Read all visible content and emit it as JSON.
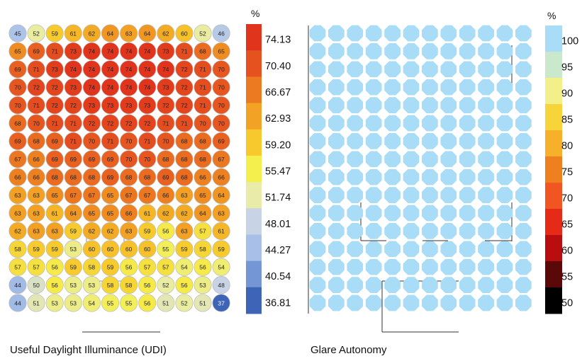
{
  "figure": {
    "udi": {
      "title": "Useful Daylight Illuminance (UDI)",
      "unit": "%",
      "legend_ticks": [
        "74.13",
        "70.40",
        "66.67",
        "62.93",
        "59.20",
        "55.47",
        "51.74",
        "48.01",
        "44.27",
        "40.54",
        "36.81"
      ],
      "legend_colors": [
        "#e0341c",
        "#e55220",
        "#ec7a20",
        "#f2a224",
        "#f7c92c",
        "#f5ef4e",
        "#e8eca8",
        "#c8d4e6",
        "#a8c0e8",
        "#7496d4",
        "#3e64b8"
      ]
    },
    "ga": {
      "title": "Glare Autonomy",
      "unit": "%",
      "legend_ticks": [
        "100",
        "95",
        "90",
        "85",
        "80",
        "75",
        "70",
        "65",
        "60",
        "55",
        "50"
      ],
      "legend_colors": [
        "#a9dcf6",
        "#c9e8cc",
        "#f3f08a",
        "#f7d53a",
        "#f6b02a",
        "#ef8020",
        "#f05522",
        "#e62a18",
        "#b80e10",
        "#5a0808",
        "#000000"
      ],
      "cell_color": "#a9dcf6"
    }
  },
  "chart_data": [
    {
      "type": "heatmap",
      "title": "Useful Daylight Illuminance (UDI)",
      "unit": "%",
      "colorbar_range": [
        36.81,
        74.13
      ],
      "colorbar_ticks": [
        74.13,
        70.4,
        66.67,
        62.93,
        59.2,
        55.47,
        51.74,
        48.01,
        44.27,
        40.54,
        36.81
      ],
      "values": [
        [
          45,
          52,
          59,
          61,
          62,
          64,
          63,
          64,
          62,
          60,
          52,
          46
        ],
        [
          65,
          69,
          71,
          73,
          74,
          74,
          74,
          74,
          73,
          71,
          68,
          65
        ],
        [
          69,
          71,
          73,
          74,
          74,
          74,
          74,
          74,
          74,
          72,
          71,
          70
        ],
        [
          70,
          72,
          72,
          73,
          74,
          74,
          74,
          74,
          73,
          72,
          71,
          70
        ],
        [
          70,
          71,
          72,
          72,
          73,
          73,
          73,
          73,
          72,
          72,
          71,
          70
        ],
        [
          68,
          70,
          71,
          71,
          72,
          72,
          72,
          72,
          71,
          71,
          70,
          70
        ],
        [
          69,
          68,
          69,
          71,
          70,
          71,
          70,
          71,
          70,
          68,
          68,
          69
        ],
        [
          67,
          66,
          69,
          69,
          69,
          69,
          70,
          70,
          68,
          68,
          68,
          67
        ],
        [
          66,
          66,
          68,
          68,
          68,
          69,
          68,
          68,
          69,
          68,
          66,
          66
        ],
        [
          63,
          63,
          65,
          67,
          67,
          65,
          67,
          67,
          66,
          63,
          65,
          64
        ],
        [
          63,
          63,
          61,
          64,
          65,
          65,
          66,
          61,
          62,
          62,
          64,
          63
        ],
        [
          62,
          63,
          63,
          59,
          62,
          62,
          63,
          59,
          56,
          63,
          57,
          61
        ],
        [
          58,
          59,
          59,
          53,
          60,
          60,
          60,
          60,
          55,
          59,
          58,
          59
        ],
        [
          57,
          57,
          56,
          59,
          58,
          59,
          56,
          57,
          57,
          54,
          56,
          54
        ],
        [
          44,
          50,
          56,
          53,
          53,
          58,
          58,
          56,
          52,
          56,
          53,
          48
        ],
        [
          44,
          51,
          53,
          53,
          54,
          55,
          55,
          56,
          51,
          52,
          51,
          37
        ]
      ]
    },
    {
      "type": "heatmap",
      "title": "Glare Autonomy",
      "unit": "%",
      "colorbar_range": [
        50,
        100
      ],
      "colorbar_ticks": [
        100,
        95,
        90,
        85,
        80,
        75,
        70,
        65,
        60,
        55,
        50
      ],
      "rows": 16,
      "cols": 12,
      "value_all_cells": 100
    }
  ]
}
